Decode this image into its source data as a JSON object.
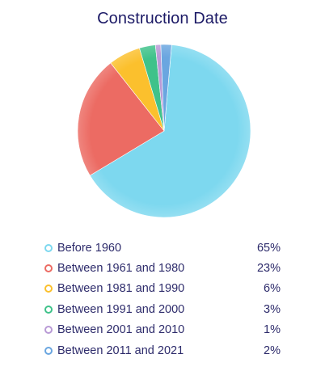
{
  "chart_data": {
    "type": "pie",
    "title": "Construction Date",
    "categories": [
      "Before 1960",
      "Between 1961 and 1980",
      "Between 1981 and 1990",
      "Between 1991 and 2000",
      "Between 2001 and 2010",
      "Between 2011 and 2021"
    ],
    "values": [
      65,
      23,
      6,
      3,
      1,
      2
    ],
    "value_labels": [
      "65%",
      "23%",
      "6%",
      "3%",
      "1%",
      "2%"
    ],
    "colors": [
      "#7dd8ef",
      "#ec6b63",
      "#fbc02d",
      "#3fc28a",
      "#b99ad6",
      "#6aa6e0"
    ],
    "legend_placement": "bottom",
    "grid": false
  }
}
